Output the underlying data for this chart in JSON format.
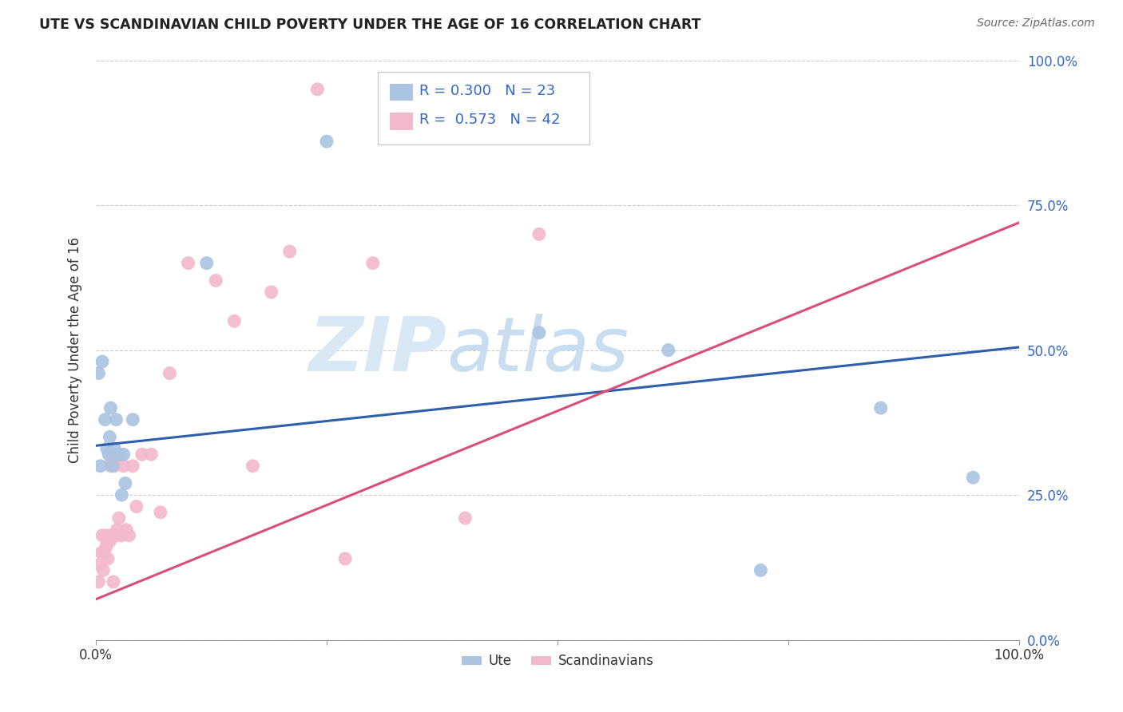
{
  "title": "UTE VS SCANDINAVIAN CHILD POVERTY UNDER THE AGE OF 16 CORRELATION CHART",
  "source": "Source: ZipAtlas.com",
  "ylabel": "Child Poverty Under the Age of 16",
  "yticks": [
    "0.0%",
    "25.0%",
    "50.0%",
    "75.0%",
    "100.0%"
  ],
  "ytick_vals": [
    0.0,
    0.25,
    0.5,
    0.75,
    1.0
  ],
  "xtick_vals": [
    0.0,
    1.0
  ],
  "xtick_labels": [
    "0.0%",
    "100.0%"
  ],
  "legend_label1": "Ute",
  "legend_label2": "Scandinavians",
  "R1": 0.3,
  "N1": 23,
  "R2": 0.573,
  "N2": 42,
  "color_ute": "#aac4e2",
  "color_scand": "#f2b8cb",
  "line_color_ute": "#2f5faa",
  "line_color_scand": "#d94f7a",
  "watermark_zip": "ZIP",
  "watermark_atlas": "atlas",
  "watermark_color": "#d8e8f5",
  "ute_x": [
    0.003,
    0.005,
    0.007,
    0.01,
    0.012,
    0.014,
    0.015,
    0.016,
    0.018,
    0.02,
    0.022,
    0.025,
    0.028,
    0.03,
    0.032,
    0.04,
    0.12,
    0.25,
    0.48,
    0.62,
    0.72,
    0.85,
    0.95
  ],
  "ute_y": [
    0.46,
    0.3,
    0.48,
    0.38,
    0.33,
    0.32,
    0.35,
    0.4,
    0.3,
    0.33,
    0.38,
    0.32,
    0.25,
    0.32,
    0.27,
    0.38,
    0.65,
    0.86,
    0.53,
    0.5,
    0.12,
    0.4,
    0.28
  ],
  "scand_x": [
    0.003,
    0.004,
    0.006,
    0.007,
    0.008,
    0.009,
    0.01,
    0.011,
    0.012,
    0.013,
    0.014,
    0.015,
    0.016,
    0.017,
    0.018,
    0.019,
    0.02,
    0.021,
    0.022,
    0.023,
    0.025,
    0.028,
    0.03,
    0.033,
    0.036,
    0.04,
    0.044,
    0.05,
    0.06,
    0.07,
    0.08,
    0.1,
    0.13,
    0.15,
    0.17,
    0.19,
    0.21,
    0.24,
    0.27,
    0.3,
    0.4,
    0.48
  ],
  "scand_y": [
    0.1,
    0.13,
    0.15,
    0.18,
    0.12,
    0.15,
    0.18,
    0.16,
    0.17,
    0.14,
    0.18,
    0.17,
    0.3,
    0.31,
    0.32,
    0.1,
    0.3,
    0.31,
    0.18,
    0.19,
    0.21,
    0.18,
    0.3,
    0.19,
    0.18,
    0.3,
    0.23,
    0.32,
    0.32,
    0.22,
    0.46,
    0.65,
    0.62,
    0.55,
    0.3,
    0.6,
    0.67,
    0.95,
    0.14,
    0.65,
    0.21,
    0.7
  ],
  "ute_line_x": [
    0.0,
    1.0
  ],
  "ute_line_y": [
    0.335,
    0.505
  ],
  "scand_line_x": [
    0.0,
    1.0
  ],
  "scand_line_y": [
    0.07,
    0.72
  ]
}
